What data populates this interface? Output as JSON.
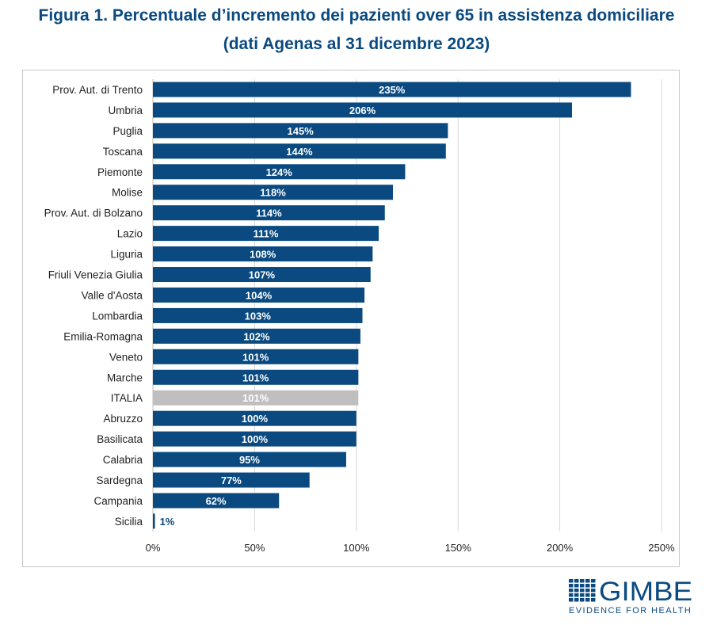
{
  "chart_data": {
    "type": "bar",
    "orientation": "horizontal",
    "title": "Figura 1. Percentuale d’incremento dei pazienti over 65 in assistenza domiciliare",
    "subtitle": "(dati Agenas al 31 dicembre 2023)",
    "categories": [
      "Prov. Aut. di Trento",
      "Umbria",
      "Puglia",
      "Toscana",
      "Piemonte",
      "Molise",
      "Prov. Aut. di Bolzano",
      "Lazio",
      "Liguria",
      "Friuli Venezia Giulia",
      "Valle d'Aosta",
      "Lombardia",
      "Emilia-Romagna",
      "Veneto",
      "Marche",
      "ITALIA",
      "Abruzzo",
      "Basilicata",
      "Calabria",
      "Sardegna",
      "Campania",
      "Sicilia"
    ],
    "values": [
      235,
      206,
      145,
      144,
      124,
      118,
      114,
      111,
      108,
      107,
      104,
      103,
      102,
      101,
      101,
      101,
      100,
      100,
      95,
      77,
      62,
      1
    ],
    "data_labels": [
      "235%",
      "206%",
      "145%",
      "144%",
      "124%",
      "118%",
      "114%",
      "111%",
      "108%",
      "107%",
      "104%",
      "103%",
      "102%",
      "101%",
      "101%",
      "101%",
      "100%",
      "100%",
      "95%",
      "77%",
      "62%",
      "1%"
    ],
    "xlim": [
      0,
      250
    ],
    "xticks": [
      0,
      50,
      100,
      150,
      200,
      250
    ],
    "xtick_labels": [
      "0%",
      "50%",
      "100%",
      "150%",
      "200%",
      "250%"
    ],
    "grid": "vertical",
    "colors": {
      "bar": "#0a4a80",
      "highlight": "#bfbfbf",
      "highlight_category": "ITALIA"
    }
  },
  "logo": {
    "name": "GIMBE",
    "tagline": "EVIDENCE FOR HEALTH"
  }
}
